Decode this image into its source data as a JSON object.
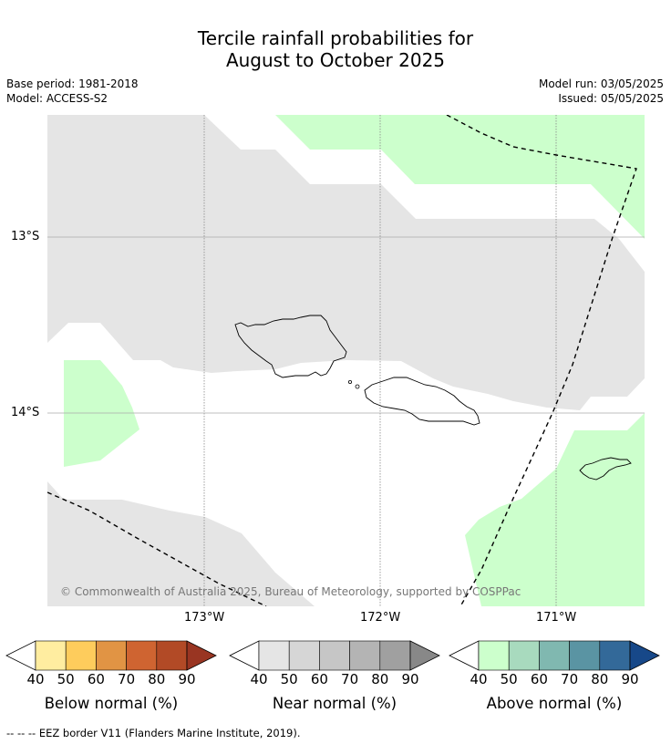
{
  "header": {
    "title_line1": "Tercile rainfall probabilities for",
    "title_line2": "August to October 2025",
    "base_period": "Base period: 1981-2018",
    "model": "Model: ACCESS-S2",
    "model_run": "Model run: 03/05/2025",
    "issued": "Issued: 05/05/2025"
  },
  "map": {
    "lat_labels": [
      "13°S",
      "14°S"
    ],
    "lon_labels": [
      "173°W",
      "172°W",
      "171°W"
    ],
    "copyright": "© Commonwealth of Australia 2025, Bureau of Meteorology, supported by COSPPac",
    "colors": {
      "near_normal_region": "#e5e5e5",
      "above_normal_region": "#ccffcc",
      "land_outline": "#000000"
    }
  },
  "colorbars": [
    {
      "title": "Below normal (%)",
      "tick_labels": [
        "40",
        "50",
        "60",
        "70",
        "80",
        "90"
      ],
      "colors": [
        "#ffffff",
        "#ffeda0",
        "#fecc5c",
        "#e19444",
        "#cf6431",
        "#b24a26",
        "#993522"
      ]
    },
    {
      "title": "Near normal (%)",
      "tick_labels": [
        "40",
        "50",
        "60",
        "70",
        "80",
        "90"
      ],
      "colors": [
        "#ffffff",
        "#e5e5e5",
        "#d6d6d6",
        "#c6c6c6",
        "#b4b4b4",
        "#a0a0a0",
        "#888888"
      ]
    },
    {
      "title": "Above normal (%)",
      "tick_labels": [
        "40",
        "50",
        "60",
        "70",
        "80",
        "90"
      ],
      "colors": [
        "#ffffff",
        "#ccffcc",
        "#a8dabe",
        "#80b8b0",
        "#5a94a3",
        "#336999",
        "#174889"
      ]
    }
  ],
  "footer": {
    "legend_text": "--  --  -- EEZ border V11 (Flanders Marine Institute, 2019)."
  }
}
